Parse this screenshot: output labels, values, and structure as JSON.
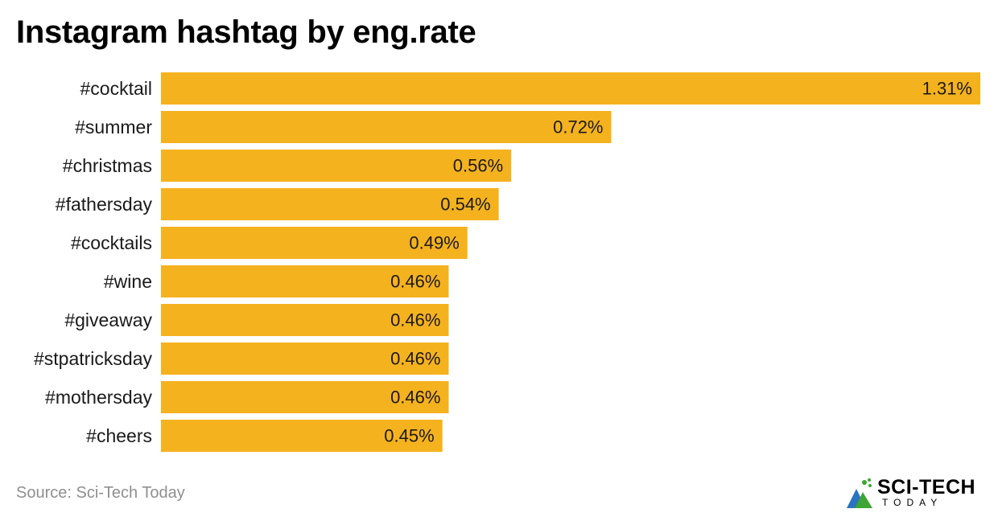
{
  "title": "Instagram hashtag by eng.rate",
  "source": "Source: Sci-Tech Today",
  "logo": {
    "main": "SCI-TECH",
    "sub": "TODAY"
  },
  "colors": {
    "bar": "#F5B21F",
    "logo_green": "#3FA535",
    "logo_blue": "#2B74C1"
  },
  "chart_data": {
    "type": "bar",
    "orientation": "horizontal",
    "categories": [
      "#cocktail",
      "#summer",
      "#christmas",
      "#fathersday",
      "#cocktails",
      "#wine",
      "#giveaway",
      "#stpatricksday",
      "#mothersday",
      "#cheers"
    ],
    "values": [
      1.31,
      0.72,
      0.56,
      0.54,
      0.49,
      0.46,
      0.46,
      0.46,
      0.46,
      0.45
    ],
    "value_labels": [
      "1.31%",
      "0.72%",
      "0.56%",
      "0.54%",
      "0.49%",
      "0.46%",
      "0.46%",
      "0.46%",
      "0.46%",
      "0.45%"
    ],
    "title": "Instagram hashtag by eng.rate",
    "xlabel": "",
    "ylabel": "",
    "xlim": [
      0,
      1.31
    ],
    "grid": false,
    "legend": "none"
  }
}
